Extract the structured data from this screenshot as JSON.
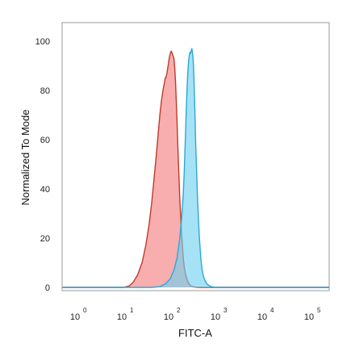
{
  "chart_data": {
    "type": "area",
    "xlabel": "FITC-A",
    "ylabel": "Normalized To Mode",
    "x_scale": "log",
    "xlim": [
      1,
      100000
    ],
    "ylim": [
      0,
      105
    ],
    "grid": false,
    "legend": "none",
    "x_ticks": [
      {
        "base": "10",
        "exp": "0",
        "value": 1
      },
      {
        "base": "10",
        "exp": "1",
        "value": 10
      },
      {
        "base": "10",
        "exp": "2",
        "value": 100
      },
      {
        "base": "10",
        "exp": "3",
        "value": 1000
      },
      {
        "base": "10",
        "exp": "4",
        "value": 10000
      },
      {
        "base": "10",
        "exp": "5",
        "value": 100000
      }
    ],
    "y_ticks": [
      {
        "label": "0",
        "value": 0
      },
      {
        "label": "20",
        "value": 20
      },
      {
        "label": "40",
        "value": 40
      },
      {
        "label": "60",
        "value": 60
      },
      {
        "label": "80",
        "value": 80
      },
      {
        "label": "100",
        "value": 100
      }
    ],
    "series": [
      {
        "fill": "#f47c7c",
        "stroke": "#c0392b",
        "x": [
          1,
          10,
          13,
          16,
          20,
          25,
          30,
          35,
          40,
          45,
          50,
          55,
          60,
          65,
          70,
          75,
          78,
          80,
          85,
          90,
          95,
          100,
          105,
          110,
          115,
          120,
          125,
          130,
          135,
          140,
          145,
          150,
          155,
          160,
          170,
          180,
          190,
          200,
          215,
          230,
          250,
          280,
          320,
          400,
          100000
        ],
        "y": [
          0,
          0,
          0.5,
          2,
          5,
          10,
          17,
          25,
          34,
          44,
          53,
          62,
          70,
          76,
          80,
          83,
          85,
          85,
          87,
          90,
          93,
          95,
          96,
          95,
          94,
          93,
          89,
          83,
          75,
          67,
          58,
          50,
          43,
          36,
          26,
          18,
          12,
          8,
          5,
          3,
          1.5,
          0.5,
          0.2,
          0,
          0
        ]
      },
      {
        "fill": "#6fd0ef",
        "stroke": "#29a8d8",
        "x": [
          1,
          40,
          60,
          80,
          100,
          120,
          140,
          160,
          175,
          190,
          200,
          210,
          220,
          230,
          240,
          250,
          255,
          260,
          265,
          270,
          280,
          290,
          300,
          310,
          320,
          330,
          340,
          350,
          365,
          380,
          400,
          420,
          450,
          480,
          520,
          600,
          700,
          900,
          100000
        ],
        "y": [
          0,
          0,
          0.3,
          1.5,
          3.5,
          7,
          12,
          20,
          28,
          38,
          48,
          60,
          72,
          82,
          89,
          93,
          94,
          95,
          95.5,
          95,
          96,
          97,
          95,
          92,
          86,
          77,
          68,
          58,
          48,
          38,
          28,
          20,
          12,
          7,
          4,
          1.5,
          0.5,
          0,
          0
        ]
      }
    ]
  }
}
